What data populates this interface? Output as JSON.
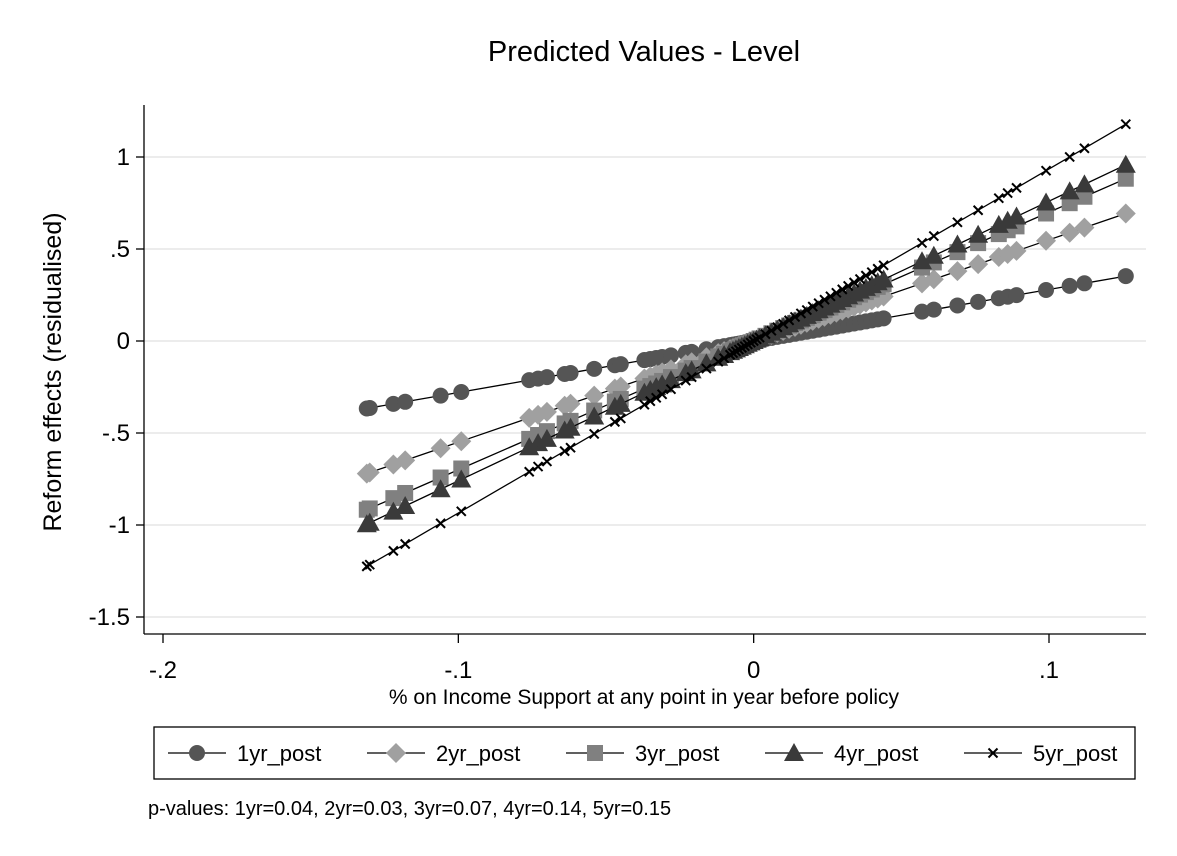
{
  "chart_data": {
    "type": "line",
    "title": "Predicted Values - Level",
    "xlabel": "% on Income Support at any point in year before policy",
    "ylabel": "Reform effects (residualised)",
    "xlim": [
      -0.205,
      0.132
    ],
    "ylim": [
      -1.6,
      1.27
    ],
    "xticks": [
      -0.2,
      -0.1,
      0,
      0.1
    ],
    "xtick_labels": [
      "-.2",
      "-.1",
      "0",
      ".1"
    ],
    "yticks": [
      1,
      0.5,
      0,
      -0.5,
      -1,
      -1.5
    ],
    "ytick_labels": [
      "1",
      ".5",
      "0",
      "-.5",
      "-1",
      "-1.5"
    ],
    "grid": "horizontal",
    "legend_position": "bottom",
    "note": "p-values: 1yr=0.04,  2yr=0.03,  3yr=0.07,  4yr=0.14,  5yr=0.15",
    "x": [
      -0.131,
      -0.13,
      -0.122,
      -0.118,
      -0.106,
      -0.099,
      -0.076,
      -0.073,
      -0.07,
      -0.064,
      -0.062,
      -0.054,
      -0.047,
      -0.045,
      -0.037,
      -0.035,
      -0.033,
      -0.031,
      -0.028,
      -0.023,
      -0.021,
      -0.016,
      -0.012,
      -0.01,
      -0.008,
      -0.007,
      -0.006,
      -0.005,
      -0.004,
      -0.003,
      -0.002,
      -0.001,
      0.0,
      0.001,
      0.002,
      0.004,
      0.006,
      0.008,
      0.01,
      0.012,
      0.014,
      0.016,
      0.018,
      0.02,
      0.022,
      0.024,
      0.026,
      0.028,
      0.03,
      0.032,
      0.034,
      0.036,
      0.038,
      0.04,
      0.042,
      0.044,
      0.057,
      0.061,
      0.069,
      0.076,
      0.083,
      0.086,
      0.089,
      0.099,
      0.107,
      0.112,
      0.126
    ],
    "series": [
      {
        "name": "1yr_post",
        "marker": "circle",
        "color": "#555555",
        "slope": 2.8
      },
      {
        "name": "2yr_post",
        "marker": "diamond",
        "color": "#a0a0a0",
        "slope": 5.5
      },
      {
        "name": "3yr_post",
        "marker": "square",
        "color": "#808080",
        "slope": 7.0
      },
      {
        "name": "4yr_post",
        "marker": "triangle",
        "color": "#3a3a3a",
        "slope": 7.6
      },
      {
        "name": "5yr_post",
        "marker": "x",
        "color": "#000000",
        "slope": 9.35
      }
    ]
  }
}
